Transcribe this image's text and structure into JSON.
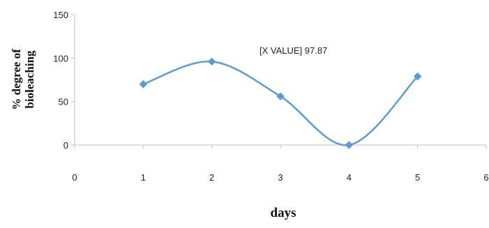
{
  "chart_data": {
    "type": "line",
    "x": [
      1,
      2,
      3,
      4,
      5
    ],
    "series": [
      {
        "values": [
          70,
          96,
          56,
          0,
          79
        ],
        "color": "#5B9BD5",
        "marker": "diamond",
        "smooth": true
      }
    ],
    "xlabel": "days",
    "ylabel_lines": [
      "% degree of",
      "bioleaching"
    ],
    "xlim": [
      0,
      6
    ],
    "ylim": [
      0,
      150
    ],
    "xticks": [
      "0",
      "1",
      "2",
      "3",
      "4",
      "5",
      "6"
    ],
    "yticks": [
      "0",
      "50",
      "100",
      "150"
    ],
    "annotation": "[X VALUE] 97.87",
    "grid": false
  }
}
